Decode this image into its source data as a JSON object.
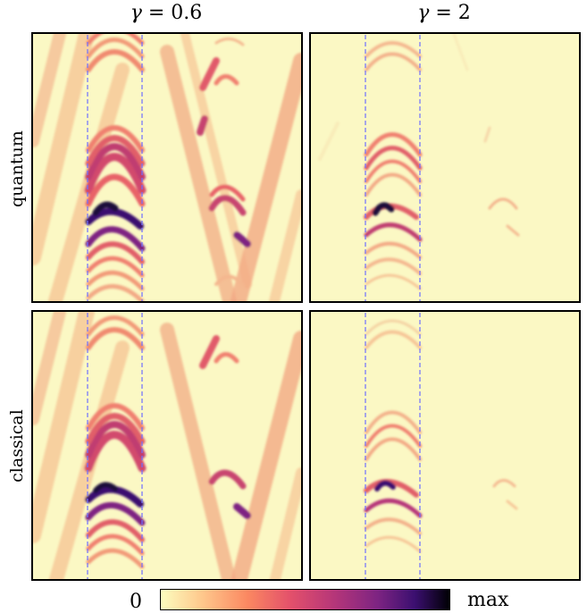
{
  "columns": [
    {
      "title_prefix": "γ",
      "title_value": "= 0.6"
    },
    {
      "title_prefix": "γ",
      "title_value": "= 2"
    }
  ],
  "rows": [
    {
      "label": "quantum"
    },
    {
      "label": "classical"
    }
  ],
  "colorbar": {
    "min_label": "0",
    "max_label": "max",
    "colormap": "magma_r",
    "stops": [
      "#fcfdbf",
      "#fec98d",
      "#fb8861",
      "#e3506b",
      "#b63679",
      "#7e2482",
      "#3b0f70",
      "#000004"
    ]
  },
  "highlight_color": "#6f6fff",
  "background_color": "#fbf8c4"
}
